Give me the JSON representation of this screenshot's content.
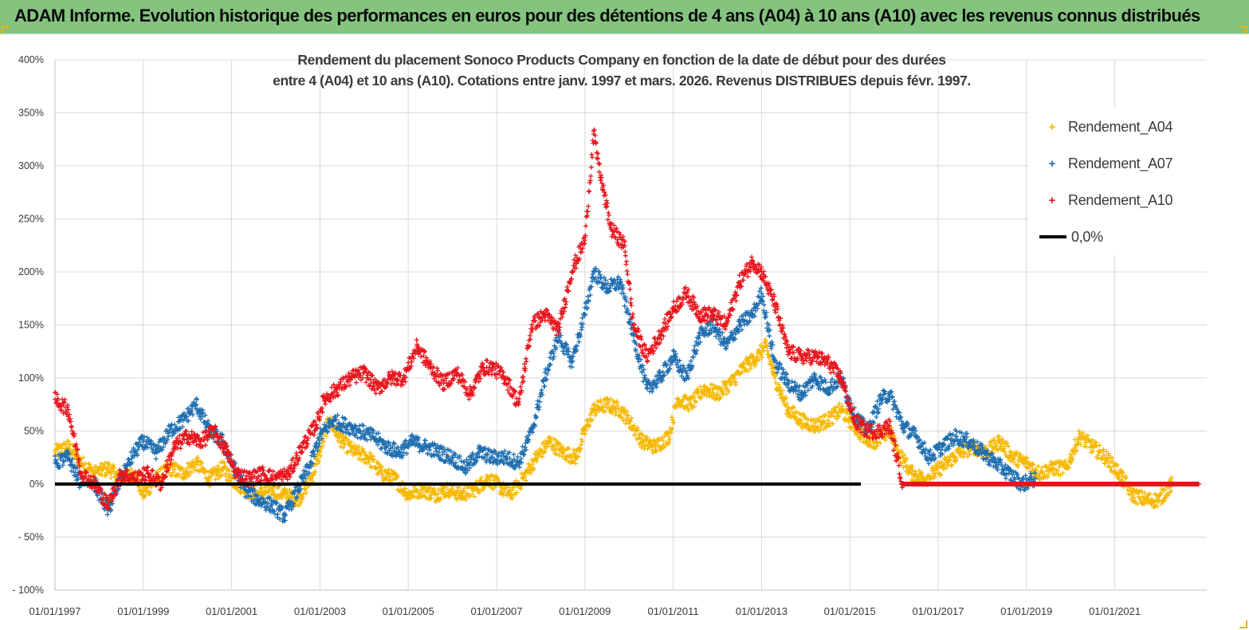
{
  "banner": {
    "title": "ADAM Informe. Evolution historique des performances en euros pour des détentions de 4 ans (A04) à 10 ans (A10) avec les revenus connus distribués"
  },
  "colors": {
    "banner_bg": "#84c47f",
    "A04": "#f5b800",
    "A07": "#1f6eb0",
    "A10": "#e8141c",
    "zero": "#000000",
    "grid": "#d9d9d9"
  },
  "chart_data": {
    "type": "scatter",
    "title_line1": "Rendement du placement Sonoco Products Company en fonction de la date de début pour des durées",
    "title_line2": "entre 4 (A04) et 10 ans (A10). Cotations entre janv. 1997 et mars. 2026. Revenus DISTRIBUES depuis févr. 1997.",
    "xlabel": "",
    "ylabel": "",
    "x_range": [
      "1997-01-01",
      "2023-01-31"
    ],
    "ylim": [
      -100,
      400
    ],
    "y_ticks": [
      "400%",
      "350%",
      "300%",
      "250%",
      "200%",
      "150%",
      "100%",
      "50%",
      "0%",
      "- 50%",
      "- 100%"
    ],
    "x_ticks": [
      "01/01/1997",
      "01/01/1999",
      "01/01/2001",
      "01/01/2003",
      "01/01/2005",
      "01/01/2007",
      "01/01/2009",
      "01/01/2011",
      "01/01/2013",
      "01/01/2015",
      "01/01/2017",
      "01/01/2019",
      "01/01/2021"
    ],
    "grid": true,
    "legend_position": "top-right",
    "legend": [
      {
        "label": "Rendement_A04",
        "marker": "+",
        "color": "#f5b800"
      },
      {
        "label": "Rendement_A07",
        "marker": "+",
        "color": "#1f6eb0"
      },
      {
        "label": "Rendement_A10",
        "marker": "+",
        "color": "#e8141c"
      },
      {
        "label": "0,0%",
        "marker": "line",
        "color": "#000000"
      }
    ],
    "series": [
      {
        "name": "Rendement_A04",
        "marker": "+",
        "color": "#f5b800",
        "points": [
          [
            1997.0,
            30
          ],
          [
            1997.3,
            35
          ],
          [
            1997.6,
            20
          ],
          [
            1997.9,
            10
          ],
          [
            1998.2,
            15
          ],
          [
            1998.5,
            5
          ],
          [
            1998.8,
            10
          ],
          [
            1999.0,
            -10
          ],
          [
            1999.3,
            5
          ],
          [
            1999.6,
            15
          ],
          [
            1999.9,
            10
          ],
          [
            2000.2,
            20
          ],
          [
            2000.5,
            5
          ],
          [
            2000.8,
            15
          ],
          [
            2001.0,
            5
          ],
          [
            2001.3,
            -5
          ],
          [
            2001.6,
            -10
          ],
          [
            2001.9,
            -5
          ],
          [
            2002.2,
            -10
          ],
          [
            2002.5,
            -15
          ],
          [
            2002.8,
            5
          ],
          [
            2003.0,
            30
          ],
          [
            2003.2,
            60
          ],
          [
            2003.5,
            40
          ],
          [
            2003.8,
            30
          ],
          [
            2004.1,
            25
          ],
          [
            2004.4,
            10
          ],
          [
            2004.7,
            5
          ],
          [
            2005.0,
            -10
          ],
          [
            2005.3,
            -5
          ],
          [
            2005.6,
            -10
          ],
          [
            2005.9,
            -5
          ],
          [
            2006.2,
            -10
          ],
          [
            2006.5,
            -5
          ],
          [
            2006.8,
            5
          ],
          [
            2007.0,
            0
          ],
          [
            2007.3,
            -10
          ],
          [
            2007.6,
            5
          ],
          [
            2007.9,
            25
          ],
          [
            2008.2,
            40
          ],
          [
            2008.5,
            30
          ],
          [
            2008.8,
            25
          ],
          [
            2009.0,
            50
          ],
          [
            2009.2,
            70
          ],
          [
            2009.5,
            75
          ],
          [
            2009.8,
            70
          ],
          [
            2010.0,
            60
          ],
          [
            2010.3,
            40
          ],
          [
            2010.6,
            35
          ],
          [
            2010.9,
            45
          ],
          [
            2011.1,
            80
          ],
          [
            2011.4,
            75
          ],
          [
            2011.7,
            90
          ],
          [
            2012.0,
            85
          ],
          [
            2012.3,
            95
          ],
          [
            2012.6,
            110
          ],
          [
            2012.9,
            120
          ],
          [
            2013.1,
            130
          ],
          [
            2013.3,
            100
          ],
          [
            2013.6,
            70
          ],
          [
            2013.9,
            60
          ],
          [
            2014.2,
            55
          ],
          [
            2014.5,
            60
          ],
          [
            2014.8,
            70
          ],
          [
            2015.0,
            60
          ],
          [
            2015.3,
            45
          ],
          [
            2015.6,
            40
          ],
          [
            2015.9,
            50
          ],
          [
            2016.1,
            30
          ],
          [
            2016.4,
            10
          ],
          [
            2016.7,
            5
          ],
          [
            2016.9,
            10
          ],
          [
            2017.2,
            20
          ],
          [
            2017.5,
            30
          ],
          [
            2017.8,
            35
          ],
          [
            2018.1,
            30
          ],
          [
            2018.4,
            40
          ],
          [
            2018.7,
            25
          ],
          [
            2019.0,
            20
          ],
          [
            2019.3,
            10
          ],
          [
            2019.6,
            15
          ],
          [
            2019.9,
            15
          ],
          [
            2020.2,
            45
          ],
          [
            2020.5,
            35
          ],
          [
            2020.8,
            25
          ],
          [
            2021.1,
            10
          ],
          [
            2021.4,
            -10
          ],
          [
            2021.7,
            -15
          ],
          [
            2022.0,
            -15
          ],
          [
            2022.3,
            0
          ],
          [
            2022.6,
            0
          ],
          [
            2022.9,
            0
          ]
        ]
      },
      {
        "name": "Rendement_A07",
        "marker": "+",
        "color": "#1f6eb0",
        "points": [
          [
            1997.0,
            20
          ],
          [
            1997.3,
            25
          ],
          [
            1997.6,
            0
          ],
          [
            1997.9,
            0
          ],
          [
            1998.2,
            -25
          ],
          [
            1998.5,
            5
          ],
          [
            1998.8,
            30
          ],
          [
            1999.0,
            40
          ],
          [
            1999.3,
            30
          ],
          [
            1999.6,
            50
          ],
          [
            1999.9,
            60
          ],
          [
            2000.2,
            75
          ],
          [
            2000.5,
            50
          ],
          [
            2000.8,
            40
          ],
          [
            2001.0,
            20
          ],
          [
            2001.3,
            -5
          ],
          [
            2001.6,
            -15
          ],
          [
            2001.9,
            -20
          ],
          [
            2002.2,
            -30
          ],
          [
            2002.5,
            -5
          ],
          [
            2002.8,
            20
          ],
          [
            2003.0,
            45
          ],
          [
            2003.3,
            60
          ],
          [
            2003.6,
            55
          ],
          [
            2003.9,
            50
          ],
          [
            2004.2,
            45
          ],
          [
            2004.5,
            35
          ],
          [
            2004.8,
            30
          ],
          [
            2005.1,
            40
          ],
          [
            2005.4,
            35
          ],
          [
            2005.7,
            30
          ],
          [
            2006.0,
            25
          ],
          [
            2006.3,
            15
          ],
          [
            2006.6,
            30
          ],
          [
            2006.9,
            25
          ],
          [
            2007.2,
            25
          ],
          [
            2007.5,
            20
          ],
          [
            2007.8,
            50
          ],
          [
            2008.1,
            100
          ],
          [
            2008.4,
            140
          ],
          [
            2008.7,
            115
          ],
          [
            2009.0,
            160
          ],
          [
            2009.2,
            200
          ],
          [
            2009.5,
            185
          ],
          [
            2009.8,
            190
          ],
          [
            2010.1,
            140
          ],
          [
            2010.4,
            90
          ],
          [
            2010.7,
            100
          ],
          [
            2011.0,
            120
          ],
          [
            2011.3,
            100
          ],
          [
            2011.6,
            140
          ],
          [
            2011.9,
            150
          ],
          [
            2012.2,
            130
          ],
          [
            2012.5,
            150
          ],
          [
            2012.8,
            160
          ],
          [
            2013.0,
            180
          ],
          [
            2013.3,
            115
          ],
          [
            2013.6,
            95
          ],
          [
            2013.9,
            85
          ],
          [
            2014.2,
            100
          ],
          [
            2014.5,
            90
          ],
          [
            2014.8,
            100
          ],
          [
            2015.1,
            65
          ],
          [
            2015.4,
            50
          ],
          [
            2015.7,
            80
          ],
          [
            2015.9,
            85
          ],
          [
            2016.2,
            55
          ],
          [
            2016.5,
            45
          ],
          [
            2016.8,
            25
          ],
          [
            2017.1,
            35
          ],
          [
            2017.4,
            45
          ],
          [
            2017.7,
            40
          ],
          [
            2018.0,
            30
          ],
          [
            2018.3,
            20
          ],
          [
            2018.6,
            10
          ],
          [
            2018.9,
            0
          ],
          [
            2019.2,
            5
          ]
        ]
      },
      {
        "name": "Rendement_A10",
        "marker": "+",
        "color": "#e8141c",
        "points": [
          [
            1997.0,
            80
          ],
          [
            1997.3,
            70
          ],
          [
            1997.6,
            10
          ],
          [
            1997.9,
            0
          ],
          [
            1998.2,
            -20
          ],
          [
            1998.5,
            10
          ],
          [
            1998.8,
            5
          ],
          [
            1999.1,
            10
          ],
          [
            1999.4,
            0
          ],
          [
            1999.7,
            35
          ],
          [
            2000.0,
            45
          ],
          [
            2000.3,
            40
          ],
          [
            2000.6,
            50
          ],
          [
            2000.9,
            30
          ],
          [
            2001.1,
            10
          ],
          [
            2001.4,
            5
          ],
          [
            2001.7,
            10
          ],
          [
            2002.0,
            5
          ],
          [
            2002.3,
            10
          ],
          [
            2002.6,
            35
          ],
          [
            2002.9,
            55
          ],
          [
            2003.1,
            80
          ],
          [
            2003.4,
            90
          ],
          [
            2003.7,
            100
          ],
          [
            2004.0,
            105
          ],
          [
            2004.3,
            90
          ],
          [
            2004.6,
            100
          ],
          [
            2004.9,
            100
          ],
          [
            2005.2,
            130
          ],
          [
            2005.5,
            110
          ],
          [
            2005.8,
            95
          ],
          [
            2006.1,
            105
          ],
          [
            2006.4,
            85
          ],
          [
            2006.7,
            110
          ],
          [
            2006.9,
            110
          ],
          [
            2007.2,
            100
          ],
          [
            2007.5,
            75
          ],
          [
            2007.8,
            150
          ],
          [
            2008.1,
            160
          ],
          [
            2008.4,
            145
          ],
          [
            2008.7,
            200
          ],
          [
            2009.0,
            230
          ],
          [
            2009.2,
            330
          ],
          [
            2009.4,
            280
          ],
          [
            2009.6,
            240
          ],
          [
            2009.9,
            225
          ],
          [
            2010.1,
            150
          ],
          [
            2010.4,
            120
          ],
          [
            2010.7,
            140
          ],
          [
            2011.0,
            165
          ],
          [
            2011.3,
            180
          ],
          [
            2011.6,
            160
          ],
          [
            2011.9,
            160
          ],
          [
            2012.2,
            150
          ],
          [
            2012.5,
            190
          ],
          [
            2012.8,
            210
          ],
          [
            2013.0,
            200
          ],
          [
            2013.3,
            170
          ],
          [
            2013.6,
            125
          ],
          [
            2013.9,
            120
          ],
          [
            2014.2,
            120
          ],
          [
            2014.5,
            115
          ],
          [
            2014.8,
            100
          ],
          [
            2015.1,
            60
          ],
          [
            2015.4,
            50
          ],
          [
            2015.7,
            50
          ],
          [
            2015.9,
            55
          ],
          [
            2016.2,
            0
          ],
          [
            2016.6,
            0
          ],
          [
            2017.0,
            0
          ],
          [
            2017.4,
            0
          ],
          [
            2017.8,
            0
          ],
          [
            2018.2,
            0
          ],
          [
            2018.6,
            0
          ],
          [
            2019.0,
            0
          ],
          [
            2019.4,
            0
          ],
          [
            2019.8,
            0
          ],
          [
            2020.2,
            0
          ],
          [
            2020.6,
            0
          ],
          [
            2021.0,
            0
          ],
          [
            2021.4,
            0
          ],
          [
            2021.8,
            0
          ],
          [
            2022.2,
            0
          ],
          [
            2022.6,
            0
          ],
          [
            2022.9,
            0
          ]
        ]
      },
      {
        "name": "0,0%",
        "type": "line",
        "color": "#000000",
        "points": [
          [
            1997.0,
            0
          ],
          [
            2015.25,
            0
          ]
        ]
      }
    ]
  }
}
